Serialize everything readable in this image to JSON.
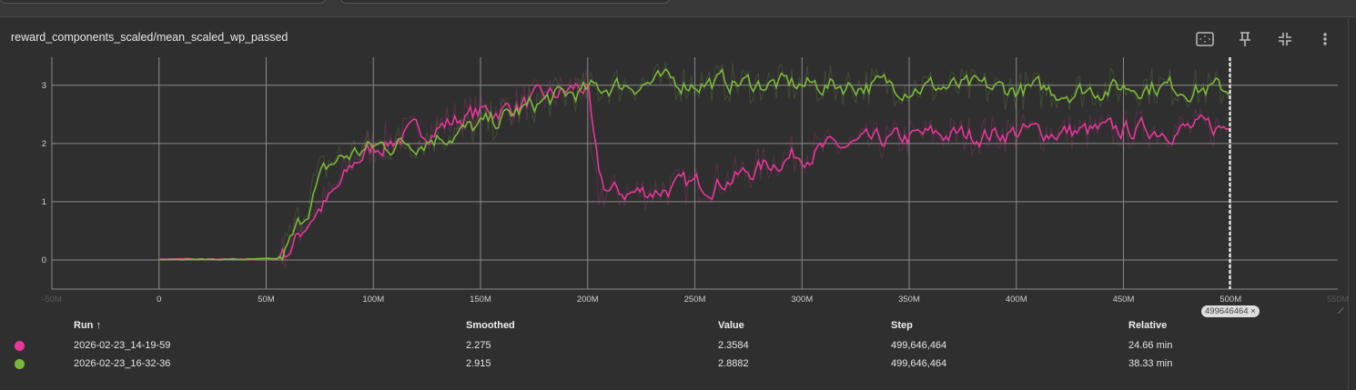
{
  "card": {
    "title": "reward_components_scaled/mean_scaled_wp_passed"
  },
  "toolbar": {
    "icons": [
      "fit-domain-icon",
      "pin-icon",
      "collapse-icon",
      "more-vert-icon"
    ]
  },
  "colors": {
    "run1": "#e8369a",
    "run2": "#7cb83a",
    "grid": "#8a8a8a",
    "background": "#2f2f2f"
  },
  "chart_data": {
    "type": "line",
    "title": "reward_components_scaled/mean_scaled_wp_passed",
    "xlabel": "",
    "ylabel": "",
    "xlim": [
      -50000000,
      550000000
    ],
    "ylim": [
      -0.5,
      3.48
    ],
    "grid": true,
    "x_ticks": [
      "-50M",
      "0",
      "50M",
      "100M",
      "150M",
      "200M",
      "250M",
      "300M",
      "350M",
      "400M",
      "450M",
      "500M",
      "550M"
    ],
    "y_ticks": [
      "0",
      "1",
      "2",
      "3"
    ],
    "x_tick_values": [
      -50000000,
      0,
      50000000,
      100000000,
      150000000,
      200000000,
      250000000,
      300000000,
      350000000,
      400000000,
      450000000,
      500000000,
      550000000
    ],
    "y_tick_values": [
      0,
      1,
      2,
      3
    ],
    "cursor_step": 499646464,
    "cursor_label": "499646464 ×",
    "series": [
      {
        "name": "2026-02-23_14-19-59",
        "color": "#e8369a",
        "x": [
          0,
          20,
          40,
          55,
          60,
          65,
          70,
          75,
          80,
          85,
          90,
          95,
          100,
          110,
          120,
          130,
          140,
          150,
          160,
          170,
          180,
          190,
          195,
          200,
          202,
          205,
          220,
          240,
          260,
          270,
          280,
          290,
          300,
          320,
          340,
          360,
          380,
          400,
          420,
          440,
          460,
          480,
          499.6
        ],
        "y": [
          0.02,
          0.01,
          0.01,
          0.02,
          0.2,
          0.5,
          0.8,
          0.95,
          1.1,
          1.4,
          1.7,
          1.85,
          1.95,
          2.1,
          2.2,
          2.3,
          2.45,
          2.55,
          2.6,
          2.7,
          2.8,
          2.9,
          3.0,
          2.9,
          1.5,
          1.15,
          1.15,
          1.25,
          1.35,
          1.45,
          1.6,
          1.75,
          1.85,
          1.95,
          2.05,
          2.15,
          2.15,
          2.2,
          2.2,
          2.2,
          2.25,
          2.25,
          2.275
        ]
      },
      {
        "name": "2026-02-23_16-32-36",
        "color": "#7cb83a",
        "x": [
          0,
          20,
          40,
          55,
          60,
          65,
          70,
          75,
          80,
          90,
          100,
          110,
          120,
          130,
          140,
          150,
          160,
          170,
          180,
          190,
          200,
          210,
          230,
          260,
          300,
          340,
          380,
          420,
          440,
          460,
          480,
          499.6
        ],
        "y": [
          0.02,
          0.01,
          0.01,
          0.02,
          0.3,
          0.7,
          1.1,
          1.5,
          1.7,
          1.85,
          1.95,
          2.0,
          2.05,
          2.15,
          2.2,
          2.3,
          2.45,
          2.6,
          2.75,
          2.85,
          2.9,
          3.0,
          3.05,
          3.05,
          3.0,
          3.0,
          2.95,
          2.9,
          2.95,
          3.0,
          2.95,
          2.915
        ]
      }
    ],
    "x_unit_of_series_x": "M"
  },
  "table": {
    "headers": {
      "run": "Run ↑",
      "smoothed": "Smoothed",
      "value": "Value",
      "step": "Step",
      "relative": "Relative"
    },
    "rows": [
      {
        "run": "2026-02-23_14-19-59",
        "smoothed": "2.275",
        "value": "2.3584",
        "step": "499,646,464",
        "relative": "24.66 min",
        "color": "#e8369a"
      },
      {
        "run": "2026-02-23_16-32-36",
        "smoothed": "2.915",
        "value": "2.8882",
        "step": "499,646,464",
        "relative": "38.33 min",
        "color": "#7cb83a"
      }
    ]
  }
}
